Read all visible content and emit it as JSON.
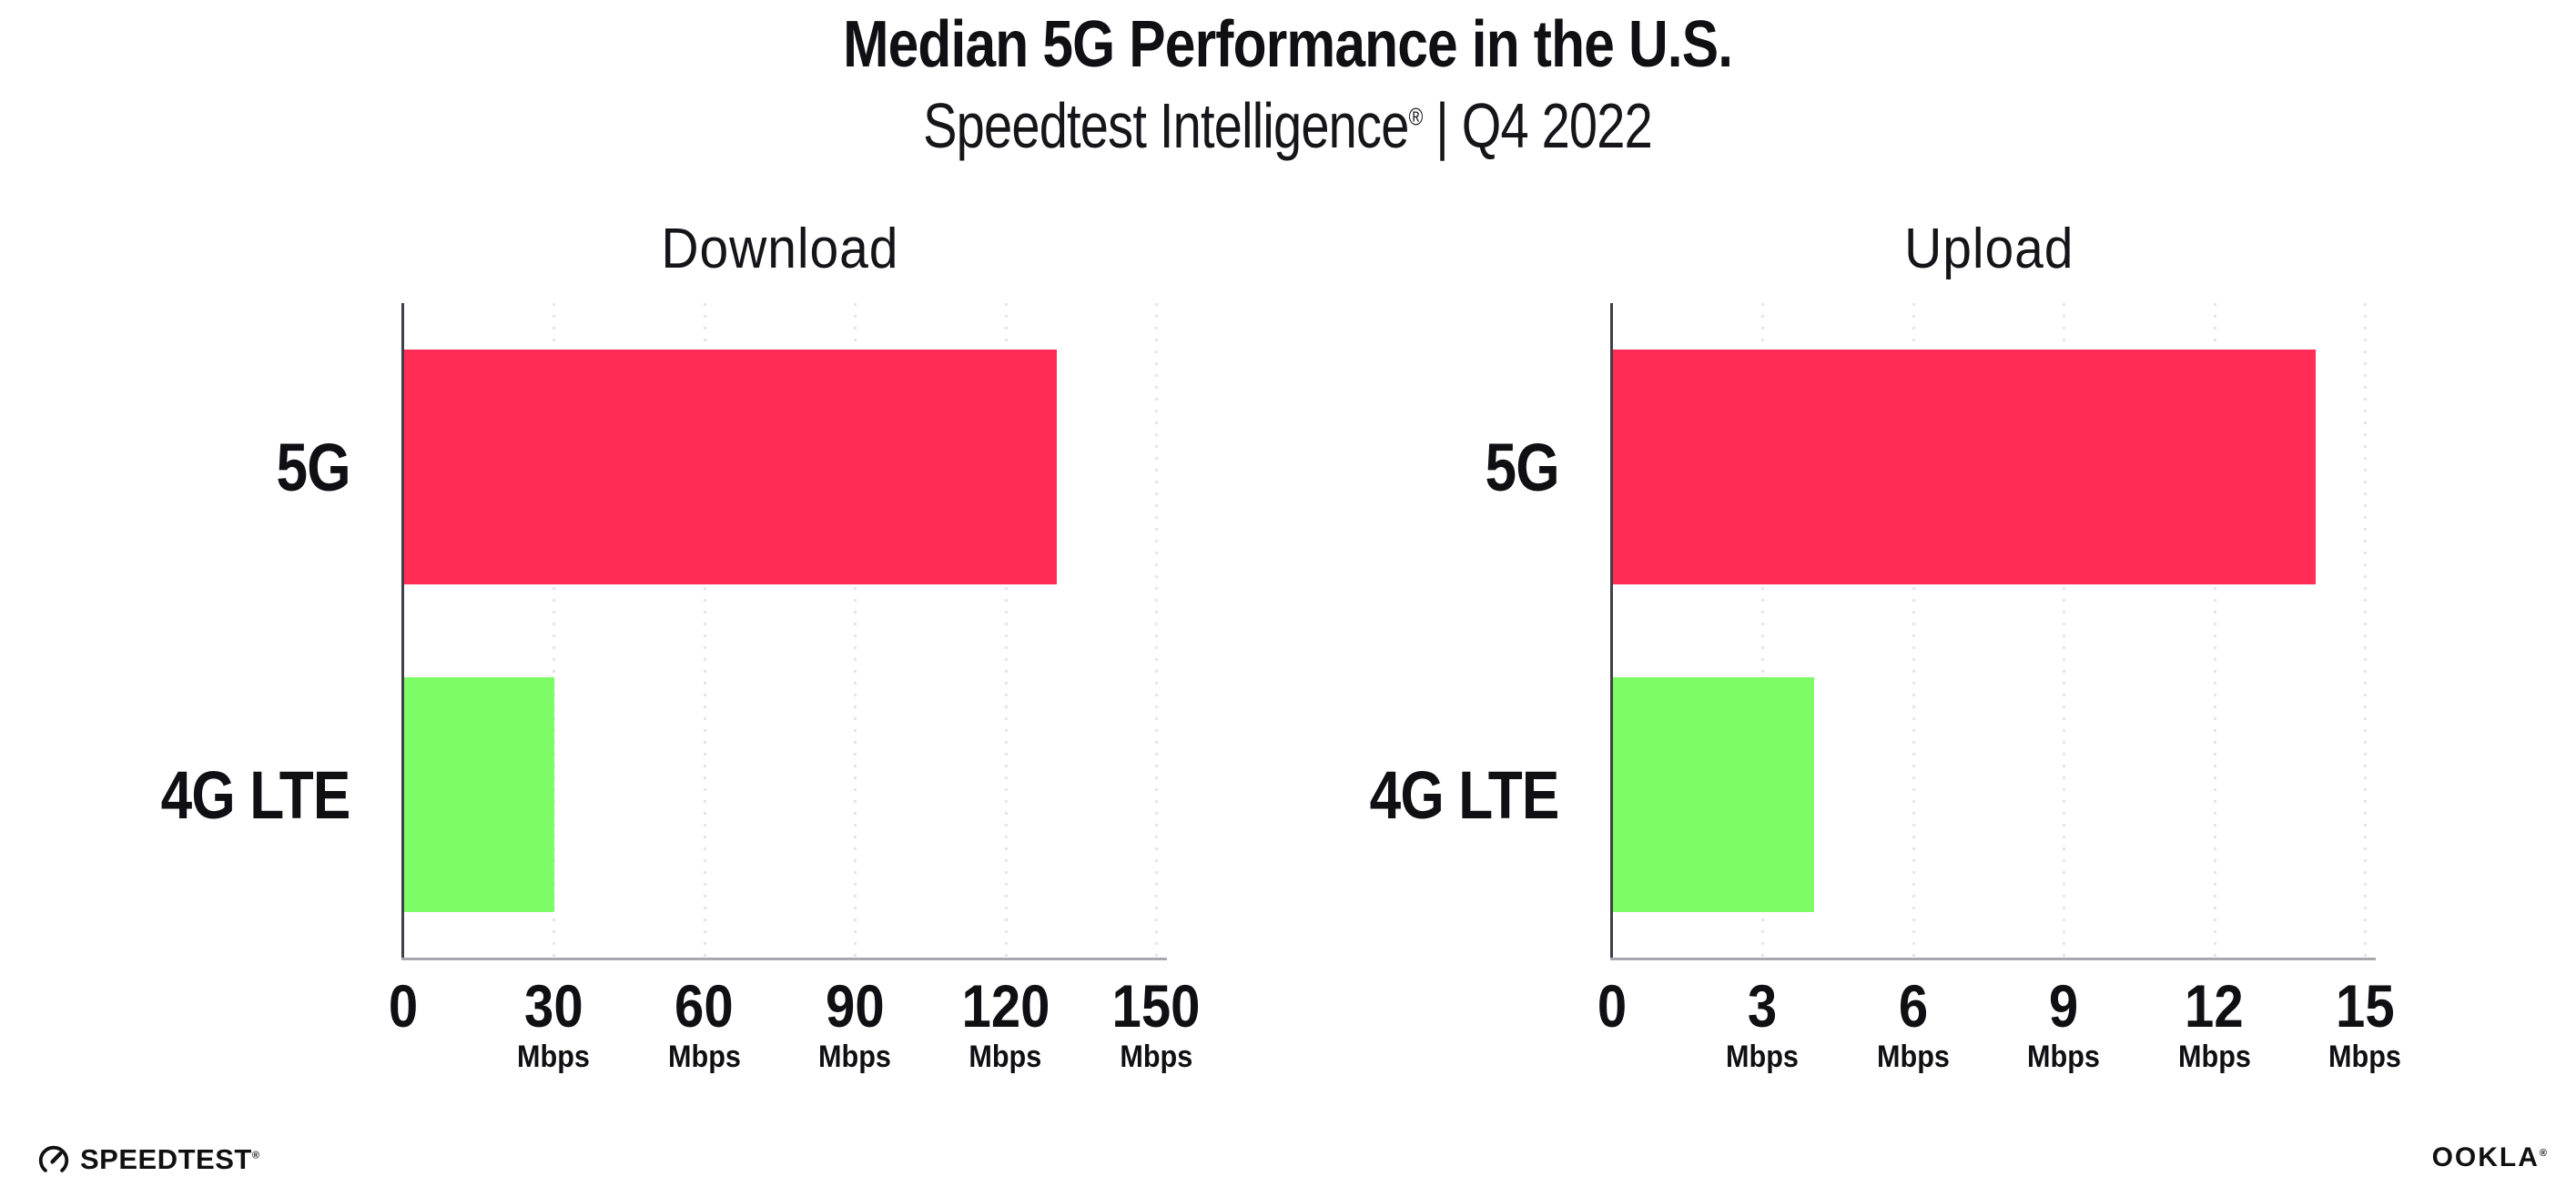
{
  "header": {
    "title": "Median 5G Performance in the U.S.",
    "subtitle_brand": "Speedtest Intelligence",
    "subtitle_reg": "®",
    "subtitle_rest": " | Q4 2022"
  },
  "chart_data": [
    {
      "type": "bar",
      "orientation": "horizontal",
      "title": "Download",
      "categories": [
        "5G",
        "4G LTE"
      ],
      "values": [
        130,
        30
      ],
      "unit": "Mbps",
      "xlim": [
        0,
        150
      ],
      "xticks": [
        0,
        30,
        60,
        90,
        120,
        150
      ],
      "tick_unit_label": "Mbps",
      "bar_colors": [
        "#FF2D55",
        "#7DFC66"
      ],
      "grid": "vertical-dotted",
      "legend": "none"
    },
    {
      "type": "bar",
      "orientation": "horizontal",
      "title": "Upload",
      "categories": [
        "5G",
        "4G LTE"
      ],
      "values": [
        14,
        4
      ],
      "unit": "Mbps",
      "xlim": [
        0,
        15
      ],
      "xticks": [
        0,
        3,
        6,
        9,
        12,
        15
      ],
      "tick_unit_label": "Mbps",
      "bar_colors": [
        "#FF2D55",
        "#7DFC66"
      ],
      "grid": "vertical-dotted",
      "legend": "none"
    }
  ],
  "footer": {
    "speedtest_logo_text": "SPEEDTEST",
    "speedtest_reg": "®",
    "ookla_logo_text": "OOKLA",
    "ookla_reg": "®"
  },
  "colors": {
    "bar_5g": "#FF2D55",
    "bar_4g_lte": "#7DFC66",
    "gridline": "#E4E4EE",
    "x_axis_line": "#A7A7AF",
    "y_axis_line": "#3F3F49",
    "text": "#0F0F14"
  }
}
